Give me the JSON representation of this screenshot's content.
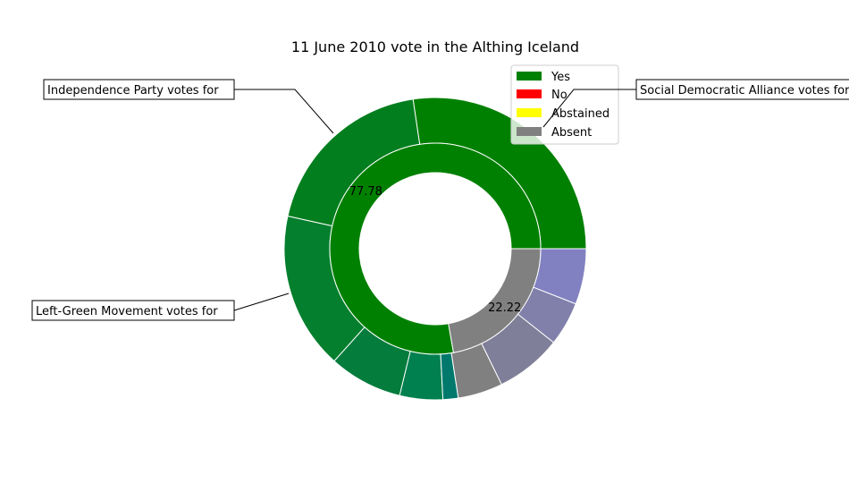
{
  "chart_data": {
    "type": "pie",
    "subtype": "nested-donut",
    "title": "11 June 2010 vote in the Althing Iceland",
    "inner_ring": {
      "categories": [
        "Yes",
        "Absent"
      ],
      "values": [
        77.78,
        22.22
      ],
      "colors": [
        "#008000",
        "#808080"
      ],
      "labels": [
        "77.78",
        "22.22"
      ]
    },
    "outer_ring": {
      "values": [
        28.5,
        20.0,
        17.5,
        8.2,
        4.8,
        1.7,
        5.0,
        7.4,
        4.9,
        6.2
      ],
      "colors": [
        "#008000",
        "#037e1f",
        "#047f2d",
        "#037c3c",
        "#00804e",
        "#00796d",
        "#808080",
        "#7f7f99",
        "#8080aa",
        "#8181c1"
      ]
    },
    "annotations": [
      {
        "text": "Independence Party votes for",
        "slice": 1
      },
      {
        "text": "Left-Green Movement votes for",
        "slice": 2
      },
      {
        "text": "Social Democratic Alliance votes for",
        "slice": 0
      }
    ],
    "legend": {
      "position": "top-right",
      "entries": [
        {
          "label": "Yes",
          "color": "#008000"
        },
        {
          "label": "No",
          "color": "#ff0000"
        },
        {
          "label": "Abstained",
          "color": "#ffff00"
        },
        {
          "label": "Absent",
          "color": "#808080"
        }
      ]
    }
  }
}
